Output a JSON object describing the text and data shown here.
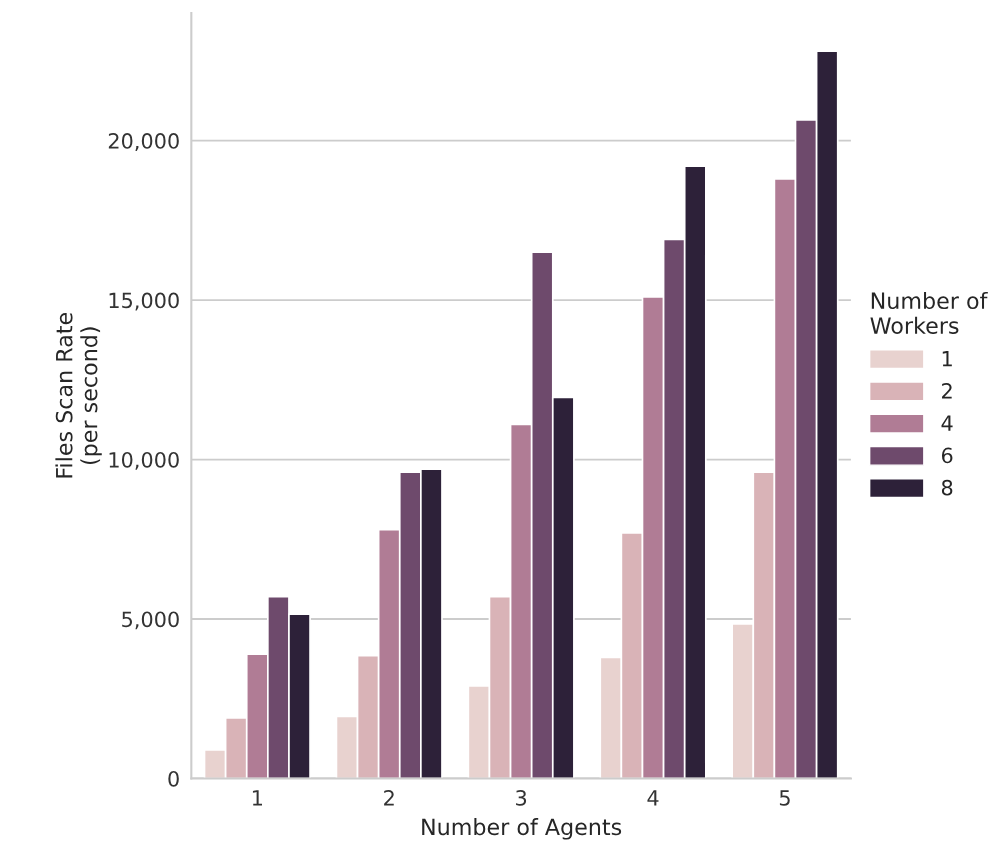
{
  "chart_data": {
    "type": "bar",
    "xlabel": "Number of Agents",
    "ylabel": "Files Scan Rate\n(per second)",
    "legend_title": "Number of\nWorkers",
    "categories": [
      "1",
      "2",
      "3",
      "4",
      "5"
    ],
    "series": [
      {
        "name": "1",
        "color": "#e8d2cf",
        "values": [
          900,
          1950,
          2900,
          3800,
          4850
        ]
      },
      {
        "name": "2",
        "color": "#d9b3b7",
        "values": [
          1900,
          3850,
          5700,
          7700,
          9600
        ]
      },
      {
        "name": "4",
        "color": "#b07c95",
        "values": [
          3900,
          7800,
          11100,
          15100,
          18800
        ]
      },
      {
        "name": "6",
        "color": "#6e4a6c",
        "values": [
          5700,
          9600,
          16500,
          16900,
          20650
        ]
      },
      {
        "name": "8",
        "color": "#2d2139",
        "values": [
          5150,
          9700,
          11950,
          19200,
          22800
        ]
      }
    ],
    "ylim": [
      0,
      24000
    ],
    "yticks": [
      {
        "value": 0,
        "label": "0"
      },
      {
        "value": 5000,
        "label": "5,000"
      },
      {
        "value": 10000,
        "label": "10,000"
      },
      {
        "value": 15000,
        "label": "15,000"
      },
      {
        "value": 20000,
        "label": "20,000"
      }
    ],
    "grid": "y",
    "legend": "right"
  }
}
